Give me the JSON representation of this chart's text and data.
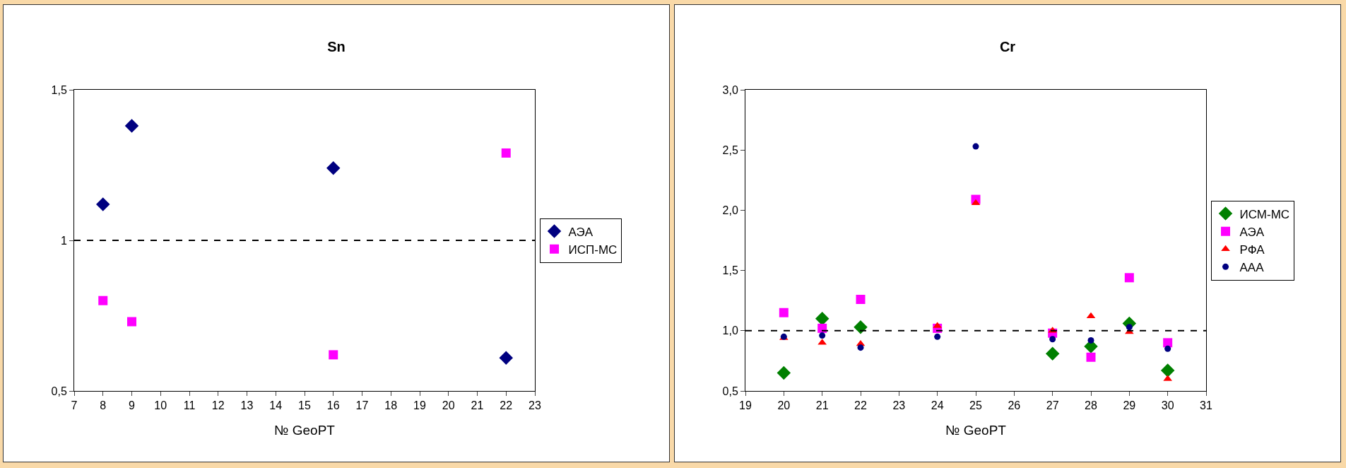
{
  "chart_data": [
    {
      "type": "scatter",
      "title": "Sn",
      "xlabel": "№ GeoPT",
      "xlim": [
        7,
        23
      ],
      "xticks": [
        7,
        8,
        9,
        10,
        11,
        12,
        13,
        14,
        15,
        16,
        17,
        18,
        19,
        20,
        21,
        22,
        23
      ],
      "ylim": [
        0.5,
        1.5
      ],
      "yticks": [
        {
          "value": 0.5,
          "label": "0,5"
        },
        1,
        {
          "value": 1.5,
          "label": "1,5"
        }
      ],
      "grid": false,
      "legend": "right",
      "ref_lines": [
        {
          "axis": "y",
          "value": 1,
          "line_style": "dashed",
          "color": "#000000"
        }
      ],
      "series": [
        {
          "name": "АЭА",
          "color": "#000080",
          "marker": "diamond",
          "x": [
            8,
            9,
            16,
            22
          ],
          "values": [
            1.12,
            1.38,
            1.24,
            0.61
          ]
        },
        {
          "name": "ИСП-МС",
          "color": "#ff00ff",
          "marker": "square",
          "x": [
            8,
            9,
            16,
            22
          ],
          "values": [
            0.8,
            0.73,
            0.62,
            1.29
          ]
        }
      ]
    },
    {
      "type": "scatter",
      "title": "Cr",
      "xlabel": "№ GeoPT",
      "xlim": [
        19,
        31
      ],
      "xticks": [
        19,
        20,
        21,
        22,
        23,
        24,
        25,
        26,
        27,
        28,
        29,
        30,
        31
      ],
      "ylim": [
        0.5,
        3.0
      ],
      "yticks": [
        {
          "value": 0.5,
          "label": "0,5"
        },
        {
          "value": 1.0,
          "label": "1,0"
        },
        {
          "value": 1.5,
          "label": "1,5"
        },
        {
          "value": 2.0,
          "label": "2,0"
        },
        {
          "value": 2.5,
          "label": "2,5"
        },
        {
          "value": 3.0,
          "label": "3,0"
        }
      ],
      "grid": false,
      "legend": "right",
      "ref_lines": [
        {
          "axis": "y",
          "value": 1,
          "line_style": "dashed",
          "color": "#000000"
        }
      ],
      "series": [
        {
          "name": "ИСМ-МС",
          "color": "#008000",
          "marker": "diamond",
          "x": [
            20,
            21,
            22,
            27,
            28,
            29,
            30
          ],
          "values": [
            0.65,
            1.1,
            1.03,
            0.81,
            0.87,
            1.06,
            0.67
          ]
        },
        {
          "name": "АЭА",
          "color": "#ff00ff",
          "marker": "square",
          "x": [
            20,
            21,
            22,
            24,
            25,
            27,
            28,
            29,
            30
          ],
          "values": [
            1.15,
            1.02,
            1.26,
            1.02,
            2.09,
            0.98,
            0.78,
            1.44,
            0.9
          ]
        },
        {
          "name": "РФА",
          "color": "#ff0000",
          "marker": "triangle",
          "x": [
            20,
            21,
            22,
            24,
            25,
            27,
            28,
            29,
            30
          ],
          "values": [
            0.94,
            0.9,
            0.89,
            1.04,
            2.06,
            1.0,
            1.12,
            0.99,
            0.6
          ]
        },
        {
          "name": "ААА",
          "color": "#000080",
          "marker": "circle",
          "x": [
            20,
            21,
            22,
            24,
            25,
            27,
            28,
            29,
            30
          ],
          "values": [
            0.95,
            0.96,
            0.86,
            0.95,
            2.53,
            0.93,
            0.92,
            1.03,
            0.85
          ]
        }
      ]
    }
  ]
}
